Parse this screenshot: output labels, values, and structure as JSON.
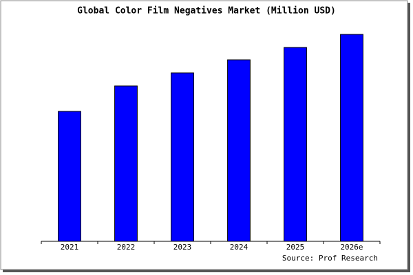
{
  "chart_data": {
    "type": "bar",
    "title": "Global Color Film Negatives Market (Million USD)",
    "categories": [
      "2021",
      "2022",
      "2023",
      "2024",
      "2025",
      "2026e"
    ],
    "values": [
      189,
      226,
      245,
      264,
      282,
      301
    ],
    "color": "#0000ff",
    "ylim": [
      0,
      306
    ],
    "source": "Source: Prof Research"
  }
}
